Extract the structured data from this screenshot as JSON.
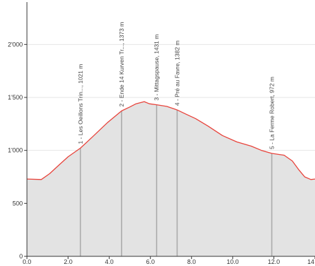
{
  "chart_data": {
    "type": "area",
    "title": "",
    "xlabel": "",
    "ylabel": "",
    "xlim": [
      0,
      14
    ],
    "ylim": [
      0,
      2400
    ],
    "x_ticks": [
      0,
      2,
      4,
      6,
      8,
      10,
      12,
      14
    ],
    "x_tick_labels": [
      "0.0",
      "2.0",
      "4.0",
      "6.0",
      "8.0",
      "10.0",
      "12.0",
      "14"
    ],
    "y_ticks": [
      0,
      500,
      1000,
      1500,
      2000
    ],
    "y_tick_labels": [
      "0",
      "500",
      "1'000",
      "1'500",
      "2'000"
    ],
    "grid": "horizontal",
    "line_color": "#e8423a",
    "fill_color": "#e3e3e3",
    "waypoint_color": "#aaaaaa",
    "profile": [
      {
        "x": 0.0,
        "y": 730
      },
      {
        "x": 0.7,
        "y": 725
      },
      {
        "x": 1.1,
        "y": 780
      },
      {
        "x": 1.6,
        "y": 870
      },
      {
        "x": 2.0,
        "y": 940
      },
      {
        "x": 2.6,
        "y": 1021
      },
      {
        "x": 3.2,
        "y": 1130
      },
      {
        "x": 3.9,
        "y": 1260
      },
      {
        "x": 4.6,
        "y": 1373
      },
      {
        "x": 5.0,
        "y": 1410
      },
      {
        "x": 5.3,
        "y": 1440
      },
      {
        "x": 5.7,
        "y": 1460
      },
      {
        "x": 5.95,
        "y": 1440
      },
      {
        "x": 6.3,
        "y": 1431
      },
      {
        "x": 6.8,
        "y": 1415
      },
      {
        "x": 7.3,
        "y": 1382
      },
      {
        "x": 7.7,
        "y": 1345
      },
      {
        "x": 8.2,
        "y": 1300
      },
      {
        "x": 8.8,
        "y": 1230
      },
      {
        "x": 9.5,
        "y": 1140
      },
      {
        "x": 10.2,
        "y": 1080
      },
      {
        "x": 10.9,
        "y": 1040
      },
      {
        "x": 11.4,
        "y": 1000
      },
      {
        "x": 11.9,
        "y": 972
      },
      {
        "x": 12.5,
        "y": 955
      },
      {
        "x": 12.9,
        "y": 900
      },
      {
        "x": 13.2,
        "y": 820
      },
      {
        "x": 13.5,
        "y": 750
      },
      {
        "x": 13.8,
        "y": 725
      },
      {
        "x": 14.0,
        "y": 730
      }
    ],
    "waypoints": [
      {
        "x": 2.6,
        "y": 1021,
        "label": "1 - Les Oeillons Trin..., 1021 m"
      },
      {
        "x": 4.6,
        "y": 1373,
        "label": "2 - Ende 14 Kurven Tr..., 1373 m"
      },
      {
        "x": 6.3,
        "y": 1431,
        "label": "3 - Mittagspause, 1431 m"
      },
      {
        "x": 7.3,
        "y": 1382,
        "label": "4 - Pré au Favre, 1382 m"
      },
      {
        "x": 11.9,
        "y": 972,
        "label": "5 - La Ferme Robert, 972 m"
      }
    ]
  }
}
